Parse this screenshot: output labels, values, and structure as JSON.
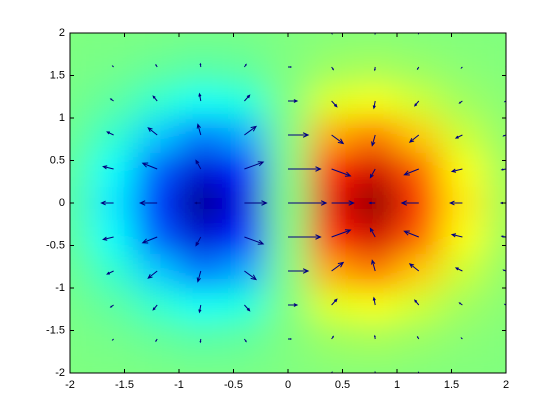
{
  "chart_data": {
    "type": "heatmap-quiver",
    "x": [
      -2,
      -1.6,
      -1.2,
      -0.8,
      -0.4,
      0,
      0.4,
      0.8,
      1.2,
      1.6,
      2
    ],
    "y": [
      -2,
      -1.6,
      -1.2,
      -0.8,
      -0.4,
      0,
      0.4,
      0.8,
      1.2,
      1.6,
      2
    ],
    "z": [
      [
        -0.001,
        -0.002,
        -0.005,
        -0.008,
        -0.006,
        0,
        0.006,
        0.008,
        0.005,
        0.002,
        0.001
      ],
      [
        -0.003,
        -0.01,
        -0.022,
        -0.033,
        -0.026,
        0,
        0.026,
        0.033,
        0.022,
        0.01,
        0.003
      ],
      [
        -0.009,
        -0.029,
        -0.067,
        -0.1,
        -0.081,
        0,
        0.081,
        0.1,
        0.067,
        0.029,
        0.009
      ],
      [
        -0.019,
        -0.065,
        -0.15,
        -0.222,
        -0.18,
        0,
        0.18,
        0.222,
        0.15,
        0.065,
        0.019
      ],
      [
        -0.031,
        -0.105,
        -0.242,
        -0.359,
        -0.29,
        0,
        0.29,
        0.359,
        0.242,
        0.105,
        0.031
      ],
      [
        -0.037,
        -0.124,
        -0.284,
        -0.422,
        -0.341,
        0,
        0.341,
        0.422,
        0.284,
        0.124,
        0.037
      ],
      [
        -0.031,
        -0.105,
        -0.242,
        -0.359,
        -0.29,
        0,
        0.29,
        0.359,
        0.242,
        0.105,
        0.031
      ],
      [
        -0.019,
        -0.065,
        -0.15,
        -0.222,
        -0.18,
        0,
        0.18,
        0.222,
        0.15,
        0.065,
        0.019
      ],
      [
        -0.009,
        -0.029,
        -0.067,
        -0.1,
        -0.081,
        0,
        0.081,
        0.1,
        0.067,
        0.029,
        0.009
      ],
      [
        -0.003,
        -0.01,
        -0.022,
        -0.033,
        -0.026,
        0,
        0.026,
        0.033,
        0.022,
        0.01,
        0.003
      ],
      [
        -0.001,
        -0.002,
        -0.005,
        -0.008,
        -0.006,
        0,
        0.006,
        0.008,
        0.005,
        0.002,
        0.001
      ]
    ],
    "u": [
      [
        -0.002,
        -0.006,
        -0.008,
        -0.003,
        0.011,
        0.018,
        0.011,
        -0.003,
        -0.008,
        -0.006,
        -0.002
      ],
      [
        -0.01,
        -0.025,
        -0.034,
        -0.011,
        0.045,
        0.077,
        0.045,
        -0.011,
        -0.034,
        -0.025,
        -0.01
      ],
      [
        -0.03,
        -0.076,
        -0.105,
        -0.035,
        0.137,
        0.237,
        0.137,
        -0.035,
        -0.105,
        -0.076,
        -0.03
      ],
      [
        -0.067,
        -0.168,
        -0.235,
        -0.078,
        0.305,
        0.527,
        0.305,
        -0.078,
        -0.235,
        -0.168,
        -0.067
      ],
      [
        -0.109,
        -0.272,
        -0.379,
        -0.126,
        0.493,
        0.852,
        0.493,
        -0.126,
        -0.379,
        -0.272,
        -0.109
      ],
      [
        -0.128,
        -0.319,
        -0.445,
        -0.148,
        0.579,
        1,
        0.579,
        -0.148,
        -0.445,
        -0.319,
        -0.128
      ],
      [
        -0.109,
        -0.272,
        -0.379,
        -0.126,
        0.493,
        0.852,
        0.493,
        -0.126,
        -0.379,
        -0.272,
        -0.109
      ],
      [
        -0.067,
        -0.168,
        -0.235,
        -0.078,
        0.305,
        0.527,
        0.305,
        -0.078,
        -0.235,
        -0.168,
        -0.067
      ],
      [
        -0.03,
        -0.076,
        -0.105,
        -0.035,
        0.137,
        0.237,
        0.137,
        -0.035,
        -0.105,
        -0.076,
        -0.03
      ],
      [
        -0.01,
        -0.025,
        -0.034,
        -0.011,
        0.045,
        0.077,
        0.045,
        -0.011,
        -0.034,
        -0.025,
        -0.01
      ],
      [
        -0.002,
        -0.006,
        -0.008,
        -0.003,
        0.011,
        0.018,
        0.011,
        -0.003,
        -0.008,
        -0.006,
        -0.002
      ]
    ],
    "v": [
      [
        -0.003,
        -0.009,
        -0.021,
        -0.031,
        -0.025,
        0,
        0.025,
        0.031,
        0.021,
        0.009,
        0.003
      ],
      [
        -0.009,
        -0.031,
        -0.07,
        -0.104,
        -0.084,
        0,
        0.084,
        0.104,
        0.07,
        0.031,
        0.009
      ],
      [
        -0.021,
        -0.07,
        -0.162,
        -0.24,
        -0.194,
        0,
        0.194,
        0.24,
        0.162,
        0.07,
        0.021
      ],
      [
        -0.031,
        -0.104,
        -0.24,
        -0.356,
        -0.288,
        0,
        0.288,
        0.356,
        0.24,
        0.104,
        0.031
      ],
      [
        -0.025,
        -0.084,
        -0.194,
        -0.288,
        -0.232,
        0,
        0.232,
        0.288,
        0.194,
        0.084,
        0.025
      ],
      [
        0,
        0,
        0,
        0,
        0,
        0,
        0,
        0,
        0,
        0,
        0
      ],
      [
        0.025,
        0.084,
        0.194,
        0.288,
        0.232,
        0,
        -0.232,
        -0.288,
        -0.194,
        -0.084,
        -0.025
      ],
      [
        0.031,
        0.104,
        0.24,
        0.356,
        0.288,
        0,
        -0.288,
        -0.356,
        -0.24,
        -0.104,
        -0.031
      ],
      [
        0.021,
        0.07,
        0.162,
        0.24,
        0.194,
        0,
        -0.194,
        -0.24,
        -0.162,
        -0.07,
        -0.021
      ],
      [
        0.009,
        0.031,
        0.07,
        0.104,
        0.084,
        0,
        -0.084,
        -0.104,
        -0.07,
        -0.031,
        -0.009
      ],
      [
        0.003,
        0.009,
        0.021,
        0.031,
        0.025,
        0,
        -0.025,
        -0.031,
        -0.021,
        -0.009,
        -0.003
      ]
    ],
    "clim": [
      -0.429,
      0.429
    ],
    "colormap": "jet",
    "quiver_color": "#000080",
    "xlim": [
      -2,
      2
    ],
    "ylim": [
      -2,
      2
    ],
    "xticks": [
      -2,
      -1.5,
      -1,
      -0.5,
      0,
      0.5,
      1,
      1.5,
      2
    ],
    "yticks": [
      -2,
      -1.5,
      -1,
      -0.5,
      0,
      0.5,
      1,
      1.5,
      2
    ]
  }
}
